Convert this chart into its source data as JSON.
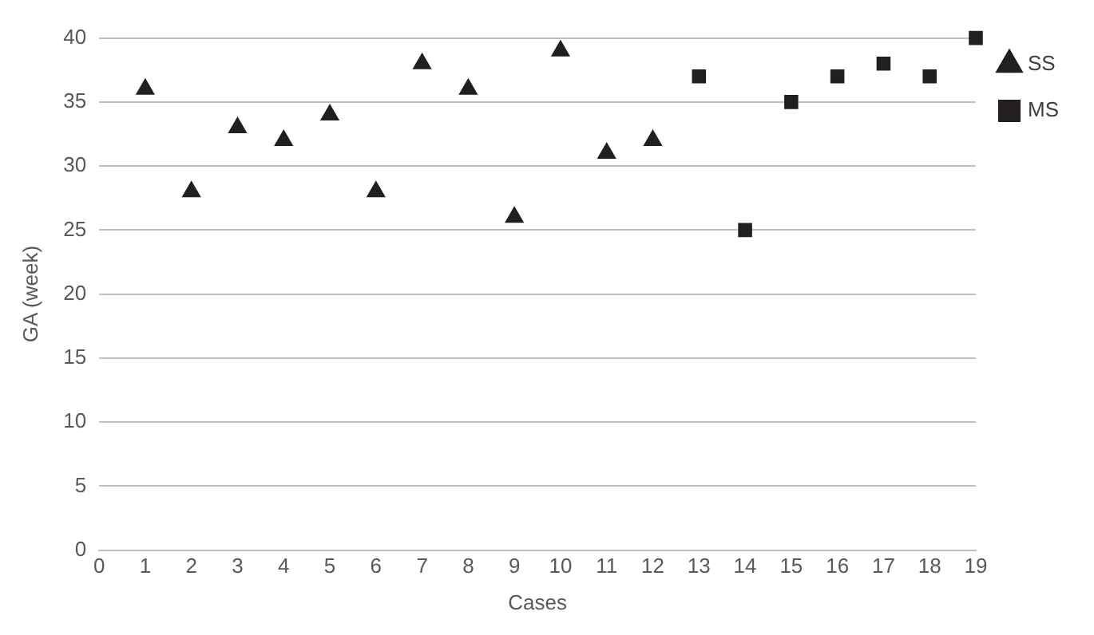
{
  "chart_data": {
    "type": "scatter",
    "xlabel": "Cases",
    "ylabel": "GA (week)",
    "xlim": [
      0,
      19
    ],
    "xticks": [
      0,
      1,
      2,
      3,
      4,
      5,
      6,
      7,
      8,
      9,
      10,
      11,
      12,
      13,
      14,
      15,
      16,
      17,
      18,
      19
    ],
    "ylim": [
      0,
      40
    ],
    "yticks": [
      0,
      5,
      10,
      15,
      20,
      25,
      30,
      35,
      40
    ],
    "grid": "y",
    "legend": "top right",
    "series": [
      {
        "name": "SS",
        "color": "#231f20",
        "marker": "triangle",
        "x": [
          1,
          2,
          3,
          4,
          5,
          6,
          7,
          8,
          9,
          10,
          11,
          12
        ],
        "values": [
          36,
          28,
          33,
          32,
          34,
          28,
          38,
          36,
          26,
          39,
          31,
          32
        ]
      },
      {
        "name": "MS",
        "color": "#231f20",
        "marker": "square",
        "x": [
          13,
          14,
          15,
          16,
          17,
          18,
          19
        ],
        "values": [
          37,
          25,
          35,
          37,
          38,
          37,
          40
        ]
      }
    ]
  }
}
